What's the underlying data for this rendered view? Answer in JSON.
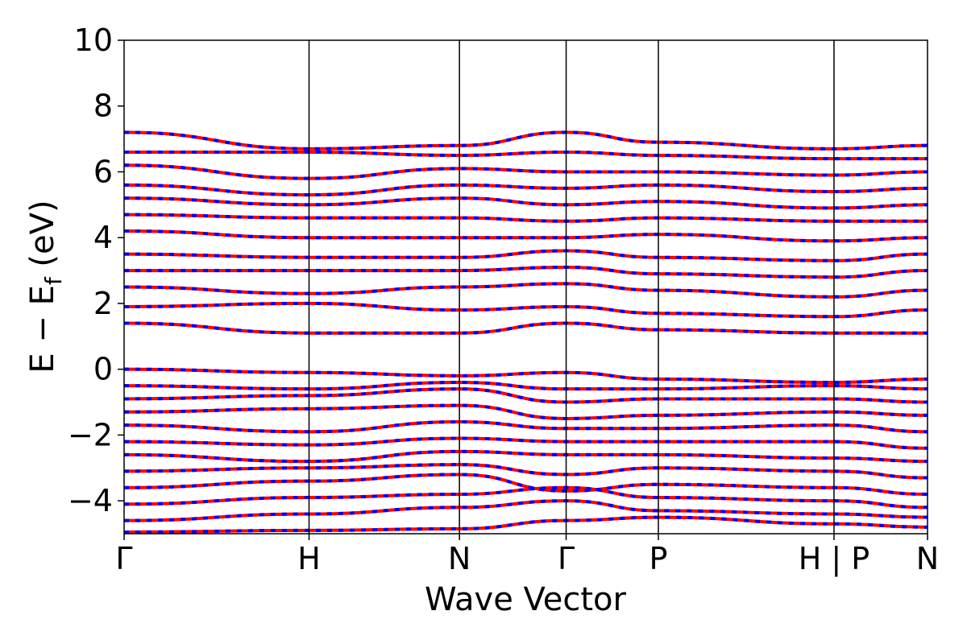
{
  "chart_data": {
    "type": "line",
    "title": "",
    "xlabel": "Wave Vector",
    "ylabel": "E − E",
    "ylabel_sub": "f",
    "ylabel_unit": " (eV)",
    "ylim": [
      -5,
      10
    ],
    "yticks": [
      {
        "value": -4,
        "label": "−4"
      },
      {
        "value": -2,
        "label": "−2"
      },
      {
        "value": 0,
        "label": "0"
      },
      {
        "value": 2,
        "label": "2"
      },
      {
        "value": 4,
        "label": "4"
      },
      {
        "value": 6,
        "label": "6"
      },
      {
        "value": 8,
        "label": "8"
      },
      {
        "value": 10,
        "label": "10"
      }
    ],
    "kpath": [
      {
        "label": "Γ",
        "x": 0.0
      },
      {
        "label": "H",
        "x": 0.2302
      },
      {
        "label": "N",
        "x": 0.4174
      },
      {
        "label": "Γ",
        "x": 0.5502
      },
      {
        "label": "P",
        "x": 0.665
      },
      {
        "label": "H | P",
        "x": 0.8836
      },
      {
        "label": "N",
        "x": 1.0
      }
    ],
    "grid": false,
    "legend": "none",
    "colors": {
      "spin_up": "#ff0000",
      "spin_down": "#0000ff"
    },
    "series": [
      {
        "line_style": "solid",
        "color": "#ff0000",
        "bands": [
          [
            -4.95,
            -4.9,
            -4.85,
            -4.6,
            -4.5,
            -4.7,
            -4.8
          ],
          [
            -4.6,
            -4.4,
            -4.2,
            -4.0,
            -4.3,
            -4.4,
            -4.5
          ],
          [
            -4.1,
            -3.9,
            -3.8,
            -3.6,
            -3.9,
            -4.0,
            -4.2
          ],
          [
            -3.6,
            -3.4,
            -3.2,
            -3.7,
            -3.5,
            -3.6,
            -3.8
          ],
          [
            -3.1,
            -3.0,
            -2.9,
            -3.2,
            -3.0,
            -3.1,
            -3.3
          ],
          [
            -2.6,
            -2.8,
            -2.5,
            -2.6,
            -2.6,
            -2.7,
            -2.8
          ],
          [
            -2.2,
            -2.3,
            -2.1,
            -2.2,
            -2.2,
            -2.2,
            -2.4
          ],
          [
            -1.7,
            -1.9,
            -1.6,
            -1.8,
            -1.8,
            -1.7,
            -1.9
          ],
          [
            -1.3,
            -1.2,
            -1.1,
            -1.5,
            -1.4,
            -1.3,
            -1.4
          ],
          [
            -0.9,
            -0.8,
            -0.6,
            -1.0,
            -0.9,
            -0.9,
            -1.0
          ],
          [
            -0.5,
            -0.6,
            -0.4,
            -0.6,
            -0.6,
            -0.5,
            -0.6
          ],
          [
            0.0,
            -0.1,
            -0.2,
            -0.1,
            -0.3,
            -0.4,
            -0.3
          ],
          [
            1.4,
            1.1,
            1.1,
            1.4,
            1.2,
            1.1,
            1.1
          ],
          [
            1.9,
            2.0,
            1.8,
            1.9,
            1.7,
            1.6,
            1.8
          ],
          [
            2.5,
            2.3,
            2.5,
            2.6,
            2.4,
            2.2,
            2.4
          ],
          [
            3.0,
            3.0,
            3.0,
            3.1,
            2.9,
            2.8,
            3.0
          ],
          [
            3.5,
            3.4,
            3.4,
            3.6,
            3.4,
            3.3,
            3.5
          ],
          [
            4.2,
            4.0,
            4.0,
            4.0,
            4.1,
            3.9,
            4.0
          ],
          [
            4.7,
            4.6,
            4.6,
            4.5,
            4.6,
            4.5,
            4.5
          ],
          [
            5.2,
            5.0,
            5.2,
            5.0,
            5.1,
            4.9,
            5.0
          ],
          [
            5.6,
            5.3,
            5.6,
            5.5,
            5.6,
            5.4,
            5.5
          ],
          [
            6.2,
            5.8,
            6.1,
            6.0,
            6.0,
            5.9,
            6.0
          ],
          [
            6.6,
            6.6,
            6.5,
            6.6,
            6.5,
            6.4,
            6.4
          ],
          [
            7.2,
            6.7,
            6.8,
            7.2,
            6.9,
            6.7,
            6.8
          ]
        ]
      },
      {
        "line_style": "dashed",
        "color": "#0000ff",
        "bands": [
          [
            -4.95,
            -4.9,
            -4.85,
            -4.6,
            -4.5,
            -4.7,
            -4.8
          ],
          [
            -4.6,
            -4.4,
            -4.2,
            -4.0,
            -4.3,
            -4.4,
            -4.5
          ],
          [
            -4.1,
            -3.9,
            -3.8,
            -3.6,
            -3.9,
            -4.0,
            -4.2
          ],
          [
            -3.6,
            -3.4,
            -3.2,
            -3.7,
            -3.5,
            -3.6,
            -3.8
          ],
          [
            -3.1,
            -3.0,
            -2.9,
            -3.2,
            -3.0,
            -3.1,
            -3.3
          ],
          [
            -2.6,
            -2.8,
            -2.5,
            -2.6,
            -2.6,
            -2.7,
            -2.8
          ],
          [
            -2.2,
            -2.3,
            -2.1,
            -2.2,
            -2.2,
            -2.2,
            -2.4
          ],
          [
            -1.7,
            -1.9,
            -1.6,
            -1.8,
            -1.8,
            -1.7,
            -1.9
          ],
          [
            -1.3,
            -1.2,
            -1.1,
            -1.5,
            -1.4,
            -1.3,
            -1.4
          ],
          [
            -0.9,
            -0.8,
            -0.6,
            -1.0,
            -0.9,
            -0.9,
            -1.0
          ],
          [
            -0.5,
            -0.6,
            -0.4,
            -0.6,
            -0.6,
            -0.5,
            -0.6
          ],
          [
            0.0,
            -0.1,
            -0.2,
            -0.1,
            -0.3,
            -0.4,
            -0.3
          ],
          [
            1.4,
            1.1,
            1.1,
            1.4,
            1.2,
            1.1,
            1.1
          ],
          [
            1.9,
            2.0,
            1.8,
            1.9,
            1.7,
            1.6,
            1.8
          ],
          [
            2.5,
            2.3,
            2.5,
            2.6,
            2.4,
            2.2,
            2.4
          ],
          [
            3.0,
            3.0,
            3.0,
            3.1,
            2.9,
            2.8,
            3.0
          ],
          [
            3.5,
            3.4,
            3.4,
            3.6,
            3.4,
            3.3,
            3.5
          ],
          [
            4.2,
            4.0,
            4.0,
            4.0,
            4.1,
            3.9,
            4.0
          ],
          [
            4.7,
            4.6,
            4.6,
            4.5,
            4.6,
            4.5,
            4.5
          ],
          [
            5.2,
            5.0,
            5.2,
            5.0,
            5.1,
            4.9,
            5.0
          ],
          [
            5.6,
            5.3,
            5.6,
            5.5,
            5.6,
            5.4,
            5.5
          ],
          [
            6.2,
            5.8,
            6.1,
            6.0,
            6.0,
            5.9,
            6.0
          ],
          [
            6.6,
            6.6,
            6.5,
            6.6,
            6.5,
            6.4,
            6.4
          ],
          [
            7.2,
            6.7,
            6.8,
            7.2,
            6.9,
            6.7,
            6.8
          ]
        ]
      }
    ]
  }
}
